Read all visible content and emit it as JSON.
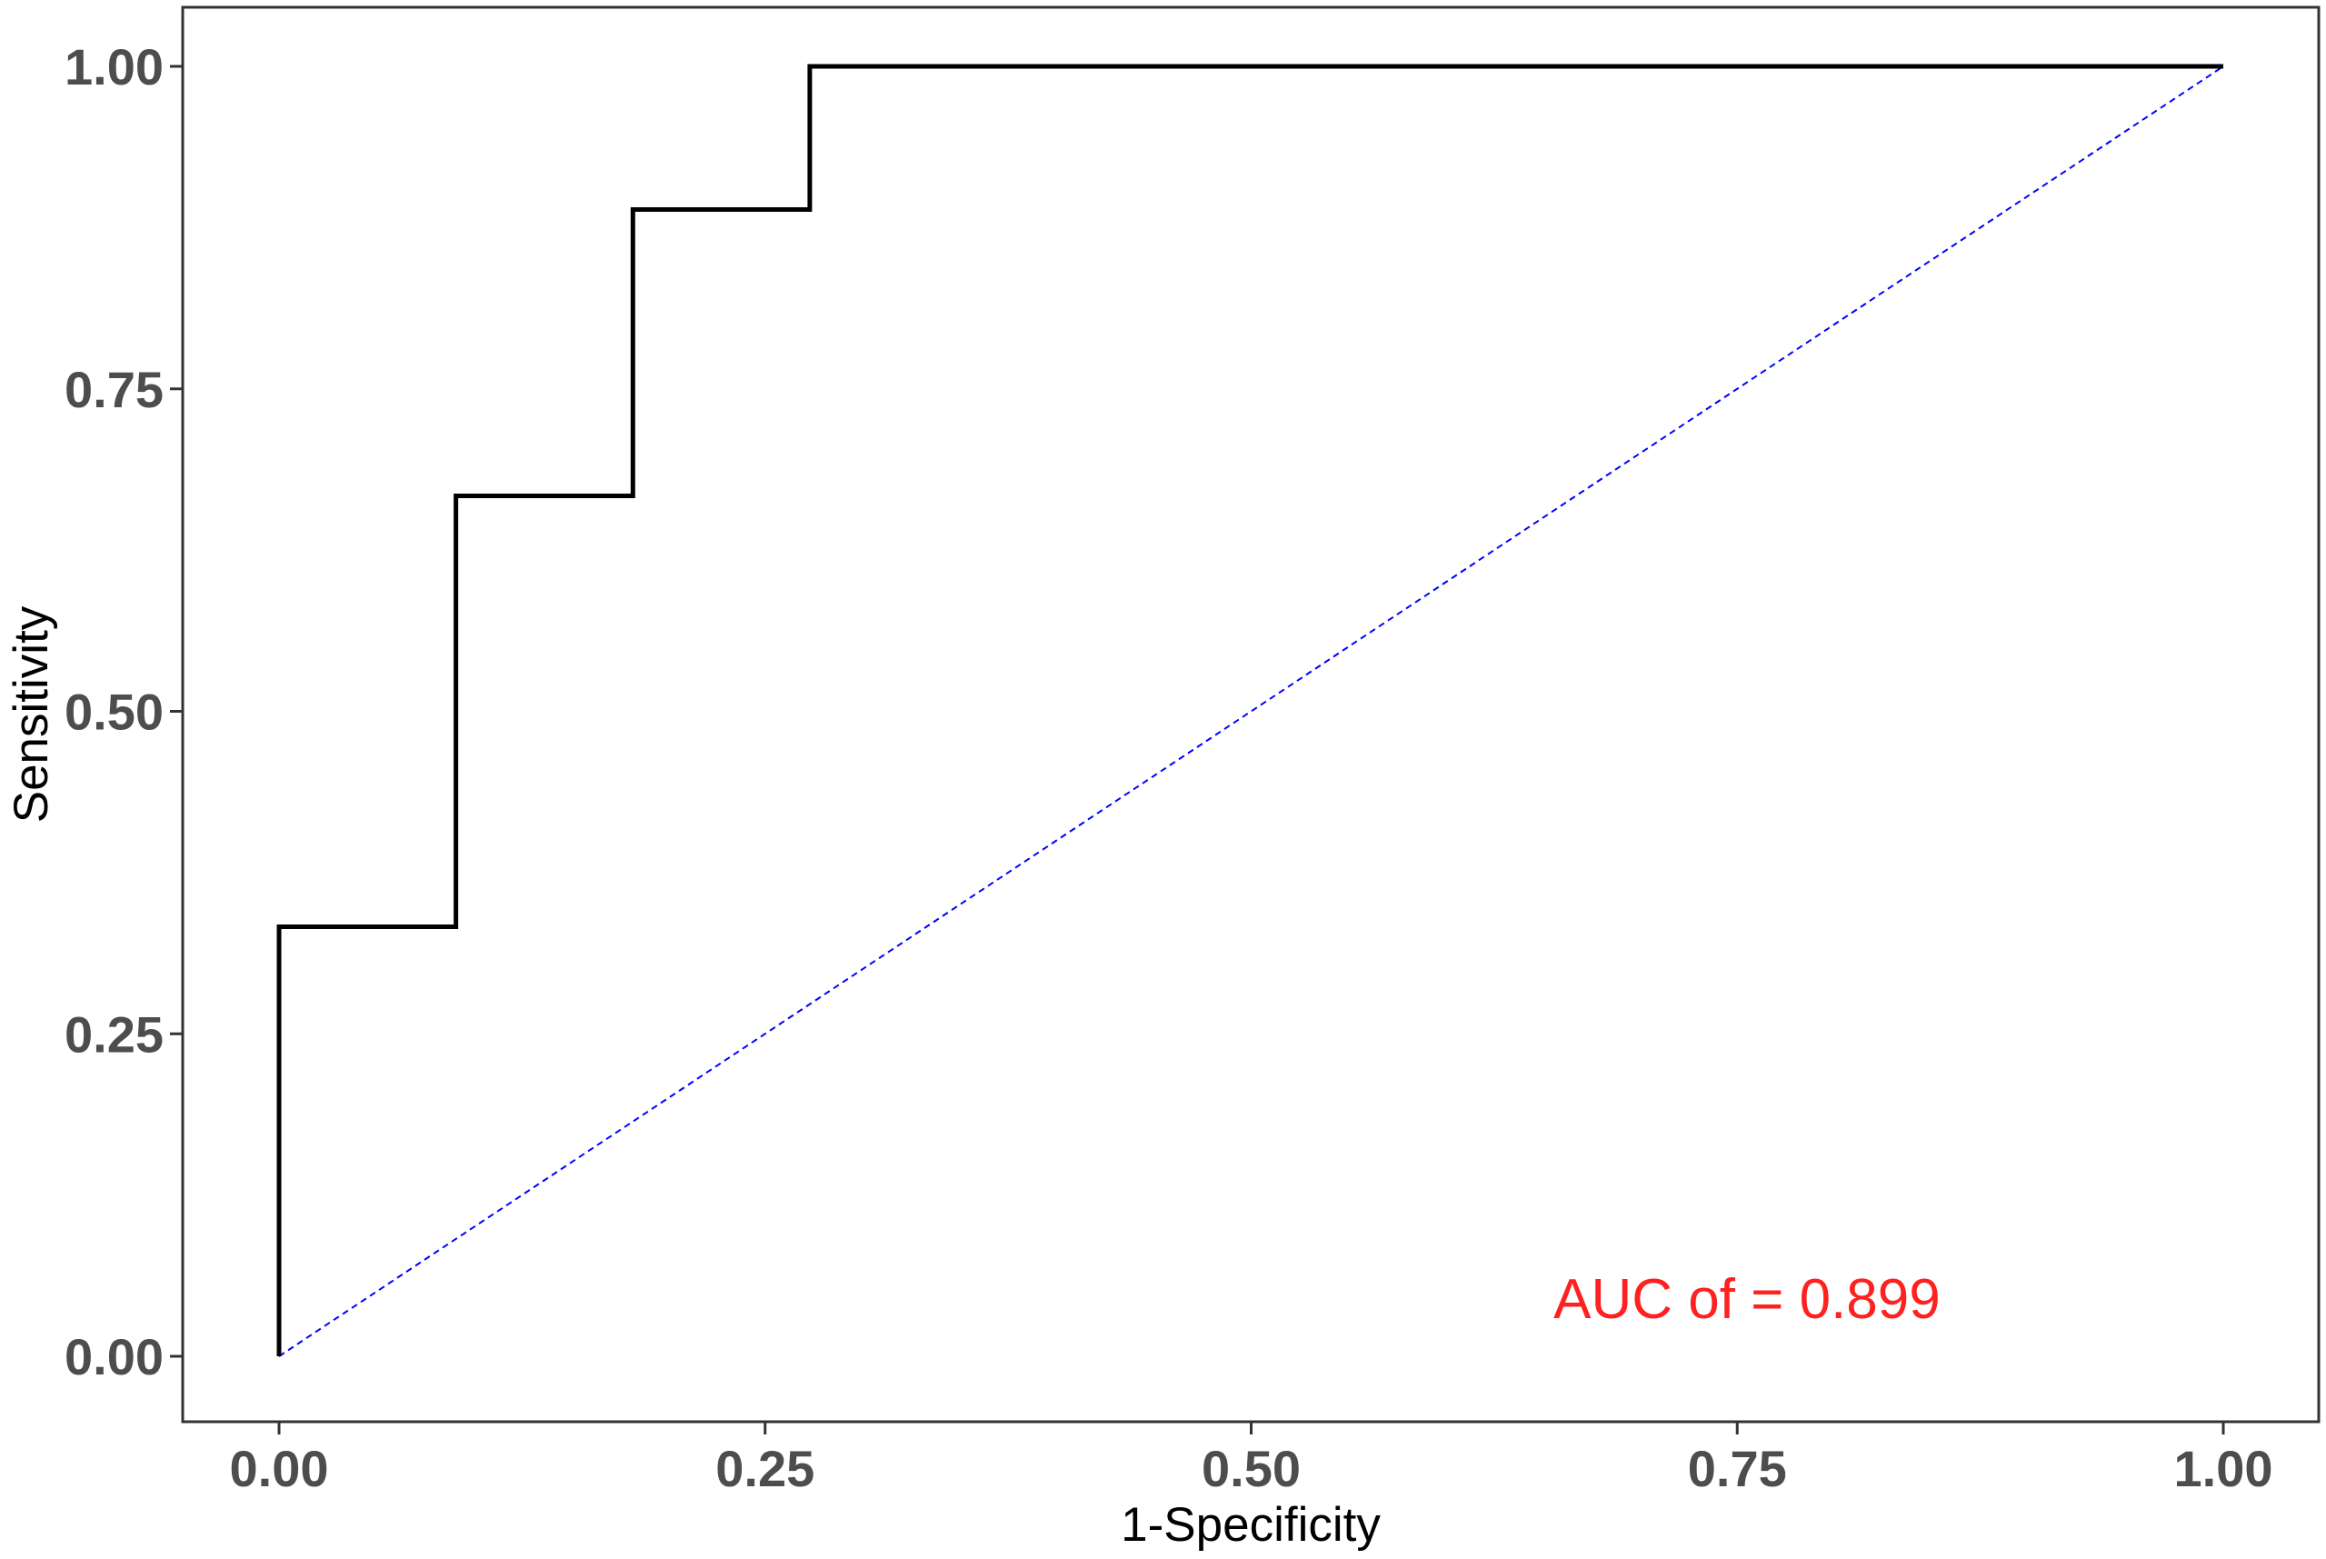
{
  "chart_data": {
    "type": "line",
    "title": "",
    "xlabel": "1-Specificity",
    "ylabel": "Sensitivity",
    "xlim": [
      0,
      1
    ],
    "ylim": [
      0,
      1
    ],
    "x_ticks": [
      "0.00",
      "0.25",
      "0.50",
      "0.75",
      "1.00"
    ],
    "y_ticks": [
      "0.00",
      "0.25",
      "0.50",
      "0.75",
      "1.00"
    ],
    "grid": false,
    "legend": "none",
    "series": [
      {
        "style": "step",
        "color": "#000000",
        "x": [
          0.0,
          0.0,
          0.091,
          0.091,
          0.182,
          0.182,
          0.273,
          0.273,
          1.0
        ],
        "y": [
          0.0,
          0.333,
          0.333,
          0.667,
          0.667,
          0.889,
          0.889,
          1.0,
          1.0
        ]
      },
      {
        "style": "dashed",
        "color": "#0000ff",
        "x": [
          0.0,
          1.0
        ],
        "y": [
          0.0,
          1.0
        ]
      }
    ],
    "annotation": {
      "text": "AUC of = 0.899",
      "color": "#ff2020",
      "x": 0.755,
      "y": 0.045
    }
  }
}
